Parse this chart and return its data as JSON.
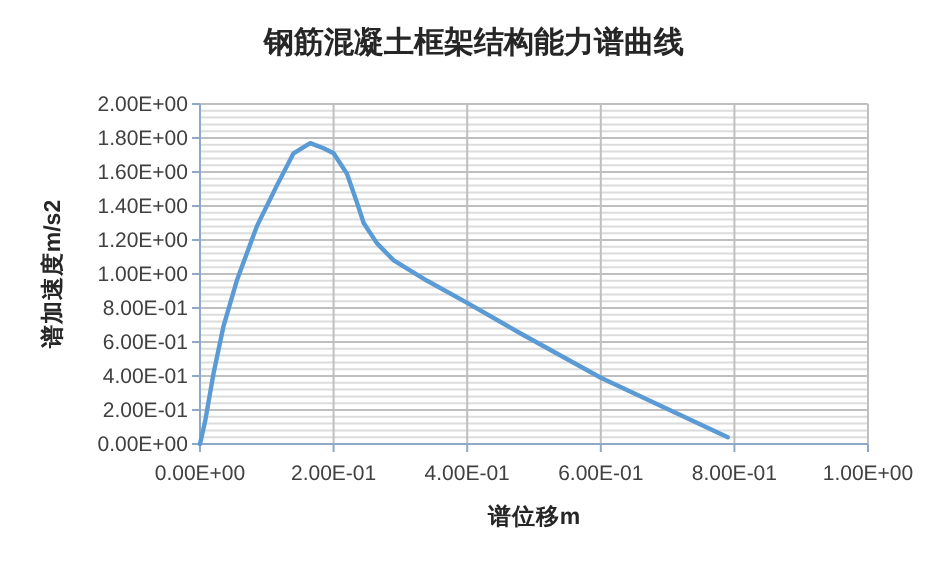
{
  "chart_data": {
    "type": "line",
    "title": "钢筋混凝土框架结构能力谱曲线",
    "xlabel": "谱位移m",
    "ylabel": "谱加速度m/s2",
    "x": [
      0,
      0.008,
      0.02,
      0.035,
      0.055,
      0.085,
      0.115,
      0.14,
      0.165,
      0.185,
      0.2,
      0.22,
      0.235,
      0.245,
      0.265,
      0.29,
      0.34,
      0.4,
      0.48,
      0.6,
      0.79
    ],
    "series": [
      {
        "color": "#5b9bd5",
        "values": [
          0,
          0.14,
          0.41,
          0.69,
          0.96,
          1.28,
          1.52,
          1.71,
          1.77,
          1.74,
          1.71,
          1.59,
          1.42,
          1.3,
          1.18,
          1.08,
          0.96,
          0.83,
          0.65,
          0.39,
          0.04
        ]
      }
    ],
    "xlim": [
      0,
      1
    ],
    "ylim": [
      0,
      2
    ],
    "xticks": [
      {
        "value": 0,
        "label": "0.00E+00"
      },
      {
        "value": 0.2,
        "label": "2.00E-01"
      },
      {
        "value": 0.4,
        "label": "4.00E-01"
      },
      {
        "value": 0.6,
        "label": "6.00E-01"
      },
      {
        "value": 0.8,
        "label": "8.00E-01"
      },
      {
        "value": 1,
        "label": "1.00E+00"
      }
    ],
    "yticks": [
      {
        "value": 0,
        "label": "0.00E+00"
      },
      {
        "value": 0.04,
        "label": null
      },
      {
        "value": 0.08,
        "label": null
      },
      {
        "value": 0.12,
        "label": null
      },
      {
        "value": 0.16,
        "label": null
      },
      {
        "value": 0.2,
        "label": "2.00E-01"
      },
      {
        "value": 0.24,
        "label": null
      },
      {
        "value": 0.28,
        "label": null
      },
      {
        "value": 0.32,
        "label": null
      },
      {
        "value": 0.36,
        "label": null
      },
      {
        "value": 0.4,
        "label": "4.00E-01"
      },
      {
        "value": 0.44,
        "label": null
      },
      {
        "value": 0.48,
        "label": null
      },
      {
        "value": 0.52,
        "label": null
      },
      {
        "value": 0.56,
        "label": null
      },
      {
        "value": 0.6,
        "label": "6.00E-01"
      },
      {
        "value": 0.64,
        "label": null
      },
      {
        "value": 0.68,
        "label": null
      },
      {
        "value": 0.72,
        "label": null
      },
      {
        "value": 0.76,
        "label": null
      },
      {
        "value": 0.8,
        "label": "8.00E-01"
      },
      {
        "value": 0.84,
        "label": null
      },
      {
        "value": 0.88,
        "label": null
      },
      {
        "value": 0.92,
        "label": null
      },
      {
        "value": 0.96,
        "label": null
      },
      {
        "value": 1,
        "label": "1.00E+00"
      },
      {
        "value": 1.04,
        "label": null
      },
      {
        "value": 1.08,
        "label": null
      },
      {
        "value": 1.12,
        "label": null
      },
      {
        "value": 1.16,
        "label": null
      },
      {
        "value": 1.2,
        "label": "1.20E+00"
      },
      {
        "value": 1.24,
        "label": null
      },
      {
        "value": 1.28,
        "label": null
      },
      {
        "value": 1.32,
        "label": null
      },
      {
        "value": 1.36,
        "label": null
      },
      {
        "value": 1.4,
        "label": "1.40E+00"
      },
      {
        "value": 1.44,
        "label": null
      },
      {
        "value": 1.48,
        "label": null
      },
      {
        "value": 1.52,
        "label": null
      },
      {
        "value": 1.56,
        "label": null
      },
      {
        "value": 1.6,
        "label": "1.60E+00"
      },
      {
        "value": 1.64,
        "label": null
      },
      {
        "value": 1.68,
        "label": null
      },
      {
        "value": 1.72,
        "label": null
      },
      {
        "value": 1.76,
        "label": null
      },
      {
        "value": 1.8,
        "label": "1.80E+00"
      },
      {
        "value": 1.84,
        "label": null
      },
      {
        "value": 1.88,
        "label": null
      },
      {
        "value": 1.92,
        "label": null
      },
      {
        "value": 1.96,
        "label": null
      },
      {
        "value": 2,
        "label": "2.00E+00"
      }
    ],
    "grid": true,
    "marker": "none",
    "line_style": "solid"
  }
}
